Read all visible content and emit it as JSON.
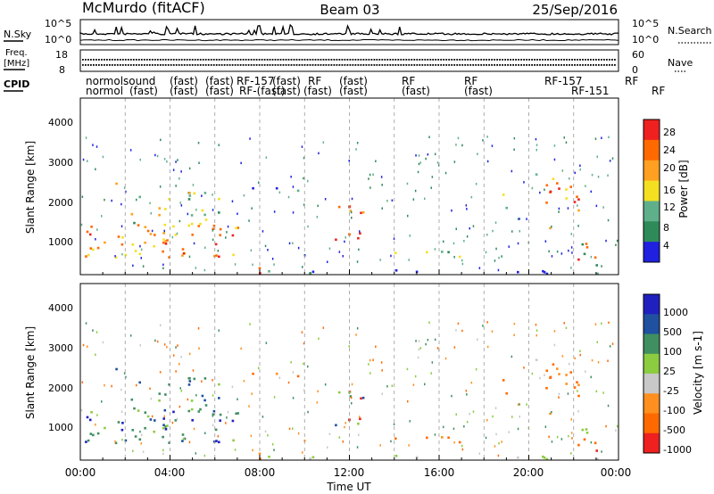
{
  "header": {
    "station": "McMurdo (fitACF)",
    "beam": "Beam 03",
    "date": "25/Sep/2016"
  },
  "noise_panel": {
    "left_label": "N.Sky",
    "right_label": "N.Search",
    "left_ticks": [
      "10^5",
      "10^0"
    ],
    "right_ticks": [
      "10^5",
      "10^0"
    ]
  },
  "freq_panel": {
    "left_label_1": "Freq.",
    "left_label_2": "[MHz]",
    "right_label": "Nave",
    "left_ticks": [
      "18",
      "8"
    ],
    "right_ticks": [
      "60",
      "0"
    ]
  },
  "cpid_panel": {
    "label": "CPID",
    "row1": [
      "normol",
      "sound",
      "(fast)",
      "(fast)",
      "RF-157",
      "(fast)",
      "RF",
      "(fast)",
      "RF",
      "RF",
      "RF-157",
      "RF"
    ],
    "row2": [
      "normol",
      "(fast)",
      "(fast)",
      "(fast)",
      "RF-(fast)",
      "(fast)",
      "(fast)",
      "(fast)",
      "(fast)",
      "(fast)",
      "RF-151",
      "RF"
    ]
  },
  "colors": {
    "power": [
      "#2020e0",
      "#2f8a5a",
      "#5fb08a",
      "#f4e020",
      "#ffa020",
      "#ff6a00",
      "#ee2020"
    ],
    "velocity": [
      "#ee2020",
      "#ff6a00",
      "#ff9020",
      "#c8c8c8",
      "#8ccc40",
      "#3f8f60",
      "#2050a0",
      "#2020c0"
    ]
  },
  "chart_data": [
    {
      "type": "heatmap",
      "ylabel": "Slant Range [km]",
      "xlabel": "Time UT",
      "xlim": [
        "00:00",
        "24:00"
      ],
      "ylim": [
        180,
        4600
      ],
      "ytick_labels": [
        "1000",
        "2000",
        "3000",
        "4000"
      ],
      "xtick_labels": [
        "00:00",
        "04:00",
        "08:00",
        "12:00",
        "16:00",
        "20:00",
        "00:00"
      ],
      "colorbar": {
        "label": "Power [dB]",
        "range": [
          0,
          32
        ],
        "tick_labels": [
          "4",
          "8",
          "12",
          "16",
          "20",
          "24",
          "28"
        ]
      }
    },
    {
      "type": "heatmap",
      "ylabel": "Slant Range [km]",
      "xlabel": "Time UT",
      "xlim": [
        "00:00",
        "24:00"
      ],
      "ylim": [
        180,
        4600
      ],
      "ytick_labels": [
        "1000",
        "2000",
        "3000",
        "4000"
      ],
      "xtick_labels": [
        "00:00",
        "04:00",
        "08:00",
        "12:00",
        "16:00",
        "20:00",
        "00:00"
      ],
      "colorbar": {
        "label": "Velocity [m s-1]",
        "tick_labels": [
          "1000",
          "500",
          "100",
          "25",
          "-25",
          "-100",
          "-500",
          "-1000"
        ]
      }
    }
  ]
}
